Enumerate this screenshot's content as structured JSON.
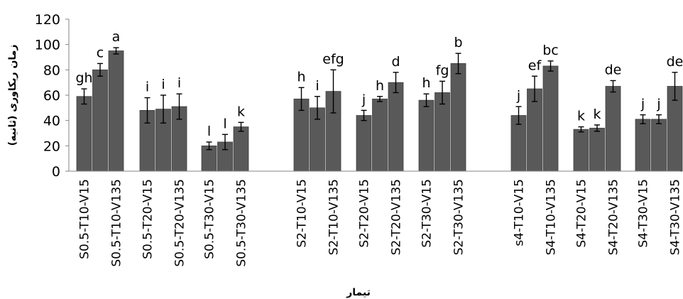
{
  "chart_data": {
    "type": "bar",
    "title": "",
    "xlabel": "تیمار",
    "ylabel": "زمان ریکاوری (ثانیه)",
    "ylim": [
      0,
      120
    ],
    "yticks": [
      0,
      20,
      40,
      60,
      80,
      100,
      120
    ],
    "grid": false,
    "legend": "none",
    "bar_color": "#595959",
    "groups": [
      {
        "categories": [
          "S0.5-T10-V15",
          "",
          "S0.5-T10-V135"
        ],
        "values": [
          59,
          80,
          95
        ],
        "errors": [
          6,
          5,
          2.5
        ],
        "letters": [
          "gh",
          "c",
          "a"
        ]
      },
      {
        "categories": [
          "S0.5-T20-V15",
          "",
          "S0.5-T20-V135"
        ],
        "values": [
          48,
          49,
          51
        ],
        "errors": [
          10,
          11,
          10
        ],
        "letters": [
          "i",
          "i",
          "i"
        ]
      },
      {
        "categories": [
          "S0.5-T30-V15",
          "",
          "S0.5-T30-V135"
        ],
        "values": [
          20,
          23,
          35
        ],
        "errors": [
          3,
          6,
          3.5
        ],
        "letters": [
          "l",
          "l",
          "k"
        ]
      },
      {
        "categories": [
          "S2-T10-V15",
          "",
          "S2-T10-V135"
        ],
        "values": [
          57,
          50,
          63
        ],
        "errors": [
          9,
          9,
          17
        ],
        "letters": [
          "h",
          "i",
          "efg"
        ]
      },
      {
        "categories": [
          "S2-T20-V15",
          "",
          "S2-T20-V135"
        ],
        "values": [
          44,
          57,
          70
        ],
        "errors": [
          4,
          2,
          8
        ],
        "letters": [
          "j",
          "h",
          "d"
        ]
      },
      {
        "categories": [
          "S2-T30-V15",
          "",
          "S2-T30-V135"
        ],
        "values": [
          56,
          62,
          85
        ],
        "errors": [
          5,
          9,
          8
        ],
        "letters": [
          "h",
          "fg",
          "b"
        ]
      },
      {
        "categories": [
          "s4-T10-V15",
          "",
          "S4-T10-V135"
        ],
        "values": [
          44,
          65,
          83
        ],
        "errors": [
          7,
          10,
          4
        ],
        "letters": [
          "j",
          "ef",
          "bc"
        ]
      },
      {
        "categories": [
          "S4-T20-V15",
          "",
          "S4-T20-V135"
        ],
        "values": [
          33,
          34,
          67
        ],
        "errors": [
          2,
          2.5,
          4.5
        ],
        "letters": [
          "k",
          "k",
          "de"
        ]
      },
      {
        "categories": [
          "S4-T30-V15",
          "",
          "S4-T30-V135"
        ],
        "values": [
          41,
          41,
          67
        ],
        "errors": [
          3.5,
          3.5,
          11
        ],
        "letters": [
          "j",
          "j",
          "de"
        ]
      }
    ]
  }
}
